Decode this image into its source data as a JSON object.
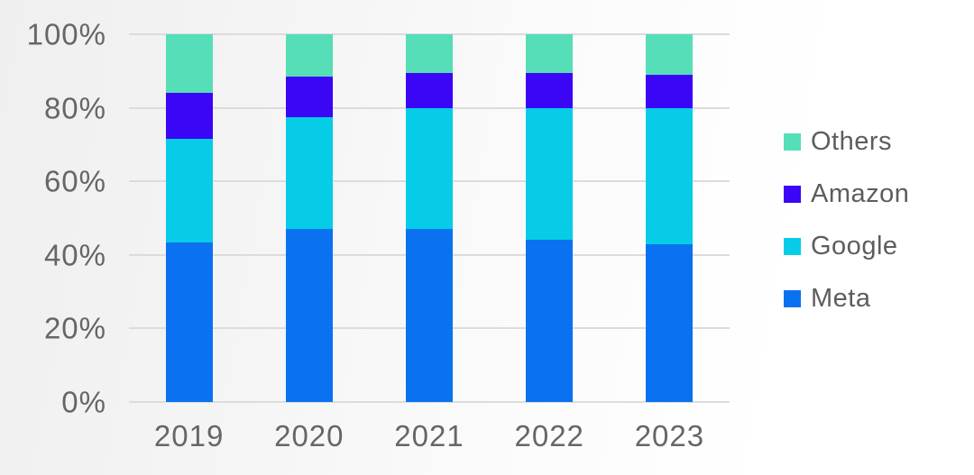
{
  "chart_data": {
    "type": "bar",
    "stacked": true,
    "percent_stacked": true,
    "title": "",
    "xlabel": "",
    "ylabel": "",
    "ylim": [
      0,
      100
    ],
    "yticks": [
      0,
      20,
      40,
      60,
      80,
      100
    ],
    "ytick_labels": [
      "0%",
      "20%",
      "40%",
      "60%",
      "80%",
      "100%"
    ],
    "categories": [
      "2019",
      "2020",
      "2021",
      "2022",
      "2023"
    ],
    "series": [
      {
        "name": "Meta",
        "color": "#0a72f0",
        "values": [
          43.5,
          47,
          47,
          44,
          43
        ]
      },
      {
        "name": "Google",
        "color": "#06cce8",
        "values": [
          28,
          30.5,
          33,
          36,
          37
        ]
      },
      {
        "name": "Amazon",
        "color": "#3b05f5",
        "values": [
          12.5,
          11,
          9.5,
          9.5,
          9
        ]
      },
      {
        "name": "Others",
        "color": "#55deb8",
        "values": [
          16,
          11.5,
          10.5,
          10.5,
          11
        ]
      }
    ],
    "legend_position": "right",
    "legend_order": [
      "Others",
      "Amazon",
      "Google",
      "Meta"
    ],
    "grid": true,
    "gridline_color": "#dcdcdc",
    "axis_label_color": "#666666",
    "legend_text_color": "#5d5d5d"
  }
}
